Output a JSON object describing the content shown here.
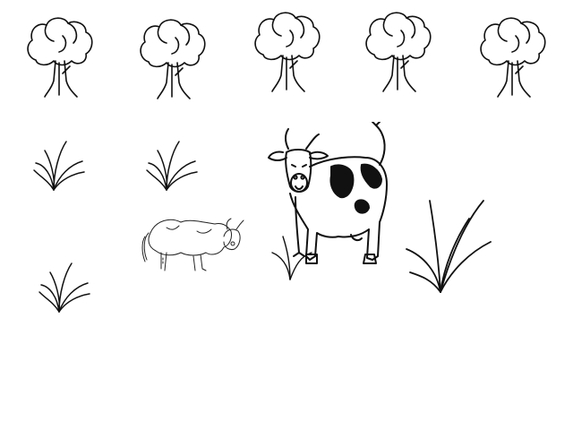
{
  "scene": {
    "background_color": "#ffffff",
    "stroke_color": "#111111",
    "sprites": {
      "trees": [
        "tree-icon",
        "tree-icon",
        "tree-icon",
        "tree-icon",
        "tree-icon"
      ],
      "grass": [
        "grass-icon",
        "grass-icon",
        "grass-icon",
        "grass-icon"
      ],
      "animals": [
        "cow-icon",
        "wild-ox-icon"
      ]
    }
  }
}
